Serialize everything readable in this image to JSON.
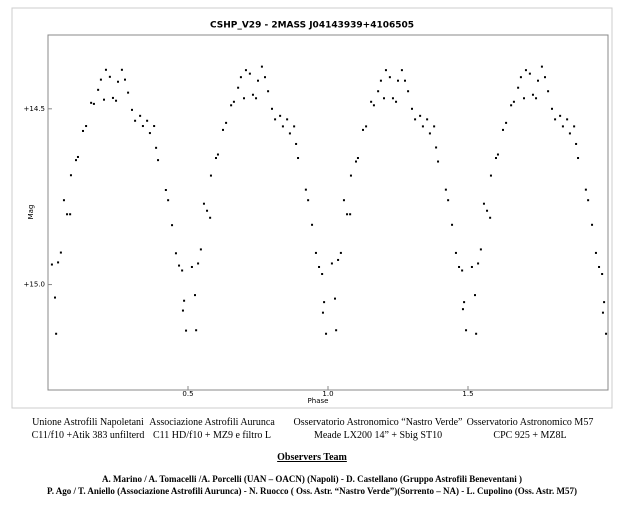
{
  "chart_data": {
    "type": "scatter",
    "title": "CSHP_V29 - 2MASS J04143939+4106505",
    "x_label": "Phase",
    "y_label": "Mag",
    "color": "#000000",
    "y_inverted": true,
    "xlim": [
      0,
      2
    ],
    "ylim": [
      14.29,
      15.3
    ],
    "xticks": [
      0.5,
      {
        "value": 1,
        "label": "1.0"
      },
      1.5
    ],
    "yticks": [
      {
        "value": 14.5,
        "label": "+14.5"
      },
      {
        "value": 15,
        "label": "+15.0"
      }
    ],
    "x": [
      0.014,
      0.025,
      0.029,
      0.036,
      0.046,
      0.057,
      0.068,
      0.079,
      0.082,
      0.1,
      0.107,
      0.125,
      0.136,
      0.154,
      0.164,
      0.179,
      0.189,
      0.2,
      0.207,
      0.221,
      0.232,
      0.243,
      0.25,
      0.264,
      0.275,
      0.286,
      0.3,
      0.311,
      0.329,
      0.339,
      0.354,
      0.364,
      0.379,
      0.386,
      0.393,
      0.421,
      0.429,
      0.443,
      0.457,
      0.468,
      0.479,
      0.486,
      0.493,
      0.482,
      0.514,
      0.525,
      0.529,
      0.536,
      0.546,
      0.557,
      0.568,
      0.579,
      0.582,
      0.6,
      0.607,
      0.625,
      0.636,
      0.654,
      0.664,
      0.679,
      0.689,
      0.7,
      0.707,
      0.721,
      0.732,
      0.743,
      0.75,
      0.764,
      0.775,
      0.786,
      0.8,
      0.811,
      0.829,
      0.839,
      0.854,
      0.864,
      0.879,
      0.886,
      0.893,
      0.921,
      0.929,
      0.943,
      0.957,
      0.968,
      0.979,
      0.986,
      0.993,
      0.982,
      1.014,
      1.025,
      1.029,
      1.036,
      1.046,
      1.057,
      1.068,
      1.079,
      1.082,
      1.1,
      1.107,
      1.125,
      1.136,
      1.154,
      1.164,
      1.179,
      1.189,
      1.2,
      1.207,
      1.221,
      1.232,
      1.243,
      1.25,
      1.264,
      1.275,
      1.286,
      1.3,
      1.311,
      1.329,
      1.339,
      1.354,
      1.364,
      1.379,
      1.386,
      1.393,
      1.421,
      1.429,
      1.443,
      1.457,
      1.468,
      1.479,
      1.486,
      1.493,
      1.482,
      1.514,
      1.525,
      1.529,
      1.536,
      1.546,
      1.557,
      1.568,
      1.579,
      1.582,
      1.6,
      1.607,
      1.625,
      1.636,
      1.654,
      1.664,
      1.679,
      1.689,
      1.7,
      1.707,
      1.721,
      1.732,
      1.743,
      1.75,
      1.764,
      1.775,
      1.786,
      1.8,
      1.811,
      1.829,
      1.839,
      1.854,
      1.864,
      1.879,
      1.886,
      1.893,
      1.921,
      1.929,
      1.943,
      1.957,
      1.968,
      1.979,
      1.986,
      1.993,
      1.982
    ],
    "values": [
      14.943,
      15.037,
      15.14,
      14.937,
      14.909,
      14.76,
      14.8,
      14.8,
      14.689,
      14.646,
      14.637,
      14.563,
      14.549,
      14.483,
      14.486,
      14.446,
      14.417,
      14.474,
      14.389,
      14.409,
      14.469,
      14.477,
      14.423,
      14.389,
      14.417,
      14.454,
      14.503,
      14.534,
      14.52,
      14.549,
      14.534,
      14.569,
      14.549,
      14.611,
      14.646,
      14.731,
      14.76,
      14.831,
      14.911,
      14.946,
      14.96,
      15.046,
      15.131,
      15.074,
      14.95,
      15.03,
      15.13,
      14.94,
      14.9,
      14.77,
      14.79,
      14.81,
      14.69,
      14.64,
      14.63,
      14.56,
      14.54,
      14.49,
      14.48,
      14.44,
      14.41,
      14.47,
      14.39,
      14.4,
      14.46,
      14.47,
      14.42,
      14.38,
      14.41,
      14.45,
      14.5,
      14.53,
      14.52,
      14.55,
      14.53,
      14.57,
      14.55,
      14.6,
      14.64,
      14.73,
      14.76,
      14.83,
      14.91,
      14.95,
      14.97,
      15.05,
      15.14,
      15.08,
      14.94,
      15.04,
      15.13,
      14.93,
      14.91,
      14.76,
      14.8,
      14.8,
      14.69,
      14.65,
      14.64,
      14.56,
      14.55,
      14.48,
      14.49,
      14.45,
      14.42,
      14.47,
      14.39,
      14.41,
      14.47,
      14.48,
      14.42,
      14.39,
      14.42,
      14.45,
      14.5,
      14.53,
      14.52,
      14.55,
      14.53,
      14.57,
      14.55,
      14.61,
      14.65,
      14.73,
      14.76,
      14.83,
      14.91,
      14.95,
      14.96,
      15.05,
      15.13,
      15.07,
      14.95,
      15.03,
      15.14,
      14.94,
      14.9,
      14.77,
      14.79,
      14.81,
      14.69,
      14.64,
      14.63,
      14.56,
      14.54,
      14.49,
      14.48,
      14.44,
      14.41,
      14.47,
      14.39,
      14.4,
      14.46,
      14.47,
      14.42,
      14.38,
      14.41,
      14.45,
      14.5,
      14.53,
      14.52,
      14.55,
      14.53,
      14.57,
      14.55,
      14.6,
      14.64,
      14.73,
      14.76,
      14.83,
      14.91,
      14.95,
      14.97,
      15.05,
      15.14,
      15.08
    ]
  },
  "footer": {
    "setups": [
      {
        "name": "Unione Astrofili Napoletani",
        "equipment": "C11/f10 +Atik 383 unfilterd"
      },
      {
        "name": "Associazione Astrofili Aurunca",
        "equipment": "C11 HD/f10 + MZ9 e filtro L"
      },
      {
        "name": "Osservatorio Astronomico “Nastro Verde”",
        "equipment": "Meade LX200 14” + Sbig ST10"
      },
      {
        "name": "Osservatorio Astronomico M57",
        "equipment": "CPC 925 + MZ8L"
      }
    ],
    "team_title": "Observers Team",
    "team_lines": [
      "A. Marino / A. Tomacelli /A. Porcelli (UAN – OACN) (Napoli)  -   D. Castellano (Gruppo Astrofili Beneventani )",
      "P. Ago / T. Aniello  (Associazione Astrofili Aurunca) - N. Ruocco ( Oss. Astr. “Nastro Verde”)(Sorrento – NA) -  L. Cupolino (Oss. Astr. M57)"
    ]
  }
}
